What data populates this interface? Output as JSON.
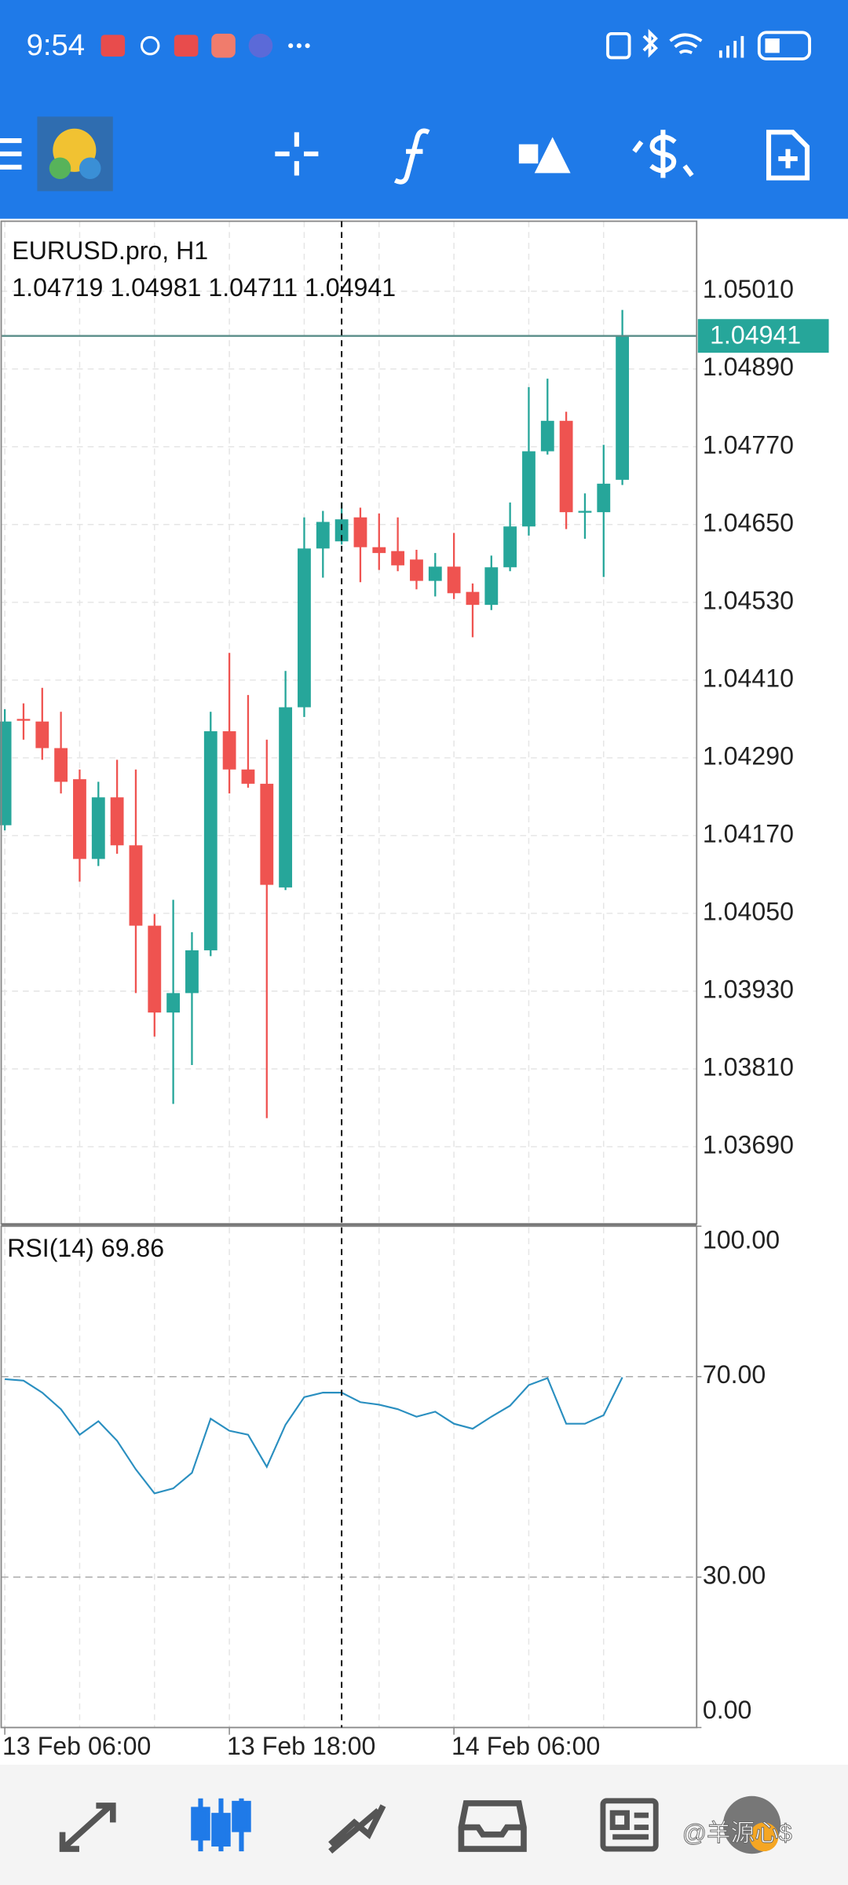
{
  "status_bar": {
    "time": "9:54"
  },
  "watermark": "@羊源心$",
  "chart_data": [
    {
      "type": "candlestick",
      "title": "EURUSD.pro, H1",
      "categories": [
        "13 Feb 06:00",
        null,
        null,
        null,
        null,
        null,
        null,
        null,
        null,
        null,
        null,
        null,
        "13 Feb 18:00",
        null,
        null,
        null,
        null,
        null,
        null,
        null,
        null,
        null,
        null,
        null,
        "14 Feb 06:00",
        null,
        null,
        null,
        null,
        null,
        null,
        null,
        null,
        null
      ],
      "open": [
        1.04186,
        1.0435,
        1.04346,
        1.04305,
        1.04257,
        1.04134,
        1.04229,
        1.04155,
        1.04031,
        1.03897,
        1.03927,
        1.03993,
        1.04331,
        1.04272,
        1.0425,
        1.0409,
        1.04368,
        1.04613,
        1.04624,
        1.04661,
        1.04615,
        1.04609,
        1.04596,
        1.04563,
        1.04585,
        1.04546,
        1.04526,
        1.04584,
        1.04647,
        1.04763,
        1.0481,
        1.0467,
        1.04669,
        1.04719
      ],
      "high": [
        1.04365,
        1.04374,
        1.04398,
        1.04361,
        1.04272,
        1.04253,
        1.04287,
        1.04272,
        1.04049,
        1.04071,
        1.04021,
        1.04361,
        1.04452,
        1.04387,
        1.04318,
        1.04424,
        1.04661,
        1.04671,
        1.04684,
        1.04676,
        1.04667,
        1.04661,
        1.04611,
        1.04606,
        1.04637,
        1.04559,
        1.04602,
        1.04684,
        1.04862,
        1.04875,
        1.04824,
        1.04698,
        1.04773,
        1.04981
      ],
      "low": [
        1.04178,
        1.04318,
        1.04287,
        1.04235,
        1.04099,
        1.04123,
        1.04142,
        1.03927,
        1.0386,
        1.03756,
        1.03816,
        1.03984,
        1.04235,
        1.04244,
        1.03734,
        1.04086,
        1.04353,
        1.04568,
        1.04619,
        1.04561,
        1.0458,
        1.04578,
        1.0455,
        1.04539,
        1.04535,
        1.04476,
        1.04518,
        1.04578,
        1.04633,
        1.04758,
        1.04643,
        1.04628,
        1.04569,
        1.04711
      ],
      "close": [
        1.04346,
        1.04349,
        1.04305,
        1.04253,
        1.04134,
        1.04229,
        1.04155,
        1.04031,
        1.03897,
        1.03927,
        1.03993,
        1.04331,
        1.04272,
        1.0425,
        1.04094,
        1.04368,
        1.04613,
        1.04654,
        1.04658,
        1.04615,
        1.04606,
        1.04587,
        1.04563,
        1.04585,
        1.04544,
        1.04526,
        1.04584,
        1.04647,
        1.04763,
        1.0481,
        1.04669,
        1.04671,
        1.04713,
        1.04941
      ],
      "up_color": "#26a69a",
      "down_color": "#ef5350",
      "ylim": [
        1.03571,
        1.05118
      ],
      "yticks": [
        {
          "value": 1.0501,
          "label": "1.05010"
        },
        {
          "value": 1.0489,
          "label": "1.04890"
        },
        {
          "value": 1.0477,
          "label": "1.04770"
        },
        {
          "value": 1.0465,
          "label": "1.04650"
        },
        {
          "value": 1.0453,
          "label": "1.04530"
        },
        {
          "value": 1.0441,
          "label": "1.04410"
        },
        {
          "value": 1.0429,
          "label": "1.04290"
        },
        {
          "value": 1.0417,
          "label": "1.04170"
        },
        {
          "value": 1.0405,
          "label": "1.04050"
        },
        {
          "value": 1.0393,
          "label": "1.03930"
        },
        {
          "value": 1.0381,
          "label": "1.03810"
        },
        {
          "value": 1.0369,
          "label": "1.03690"
        }
      ],
      "grid": true
    },
    {
      "type": "line",
      "title": "RSI(14)",
      "values": [
        69.5,
        69.2,
        66.8,
        63.5,
        58.4,
        61.1,
        57.2,
        51.5,
        46.7,
        47.7,
        50.8,
        61.6,
        59.2,
        58.4,
        52,
        60.4,
        65.9,
        66.8,
        66.8,
        64.9,
        64.4,
        63.5,
        62,
        63,
        60.6,
        59.6,
        62,
        64.2,
        68.3,
        69.7,
        60.6,
        60.6,
        62.3,
        69.86
      ],
      "color": "#2a8fc0",
      "ylim": [
        0,
        100
      ],
      "yticks": [
        {
          "value": 100,
          "label": "100.00"
        },
        {
          "value": 70,
          "label": "70.00"
        },
        {
          "value": 30,
          "label": "30.00"
        },
        {
          "value": 0,
          "label": "0.00"
        }
      ],
      "levels": [
        70,
        30
      ]
    }
  ]
}
